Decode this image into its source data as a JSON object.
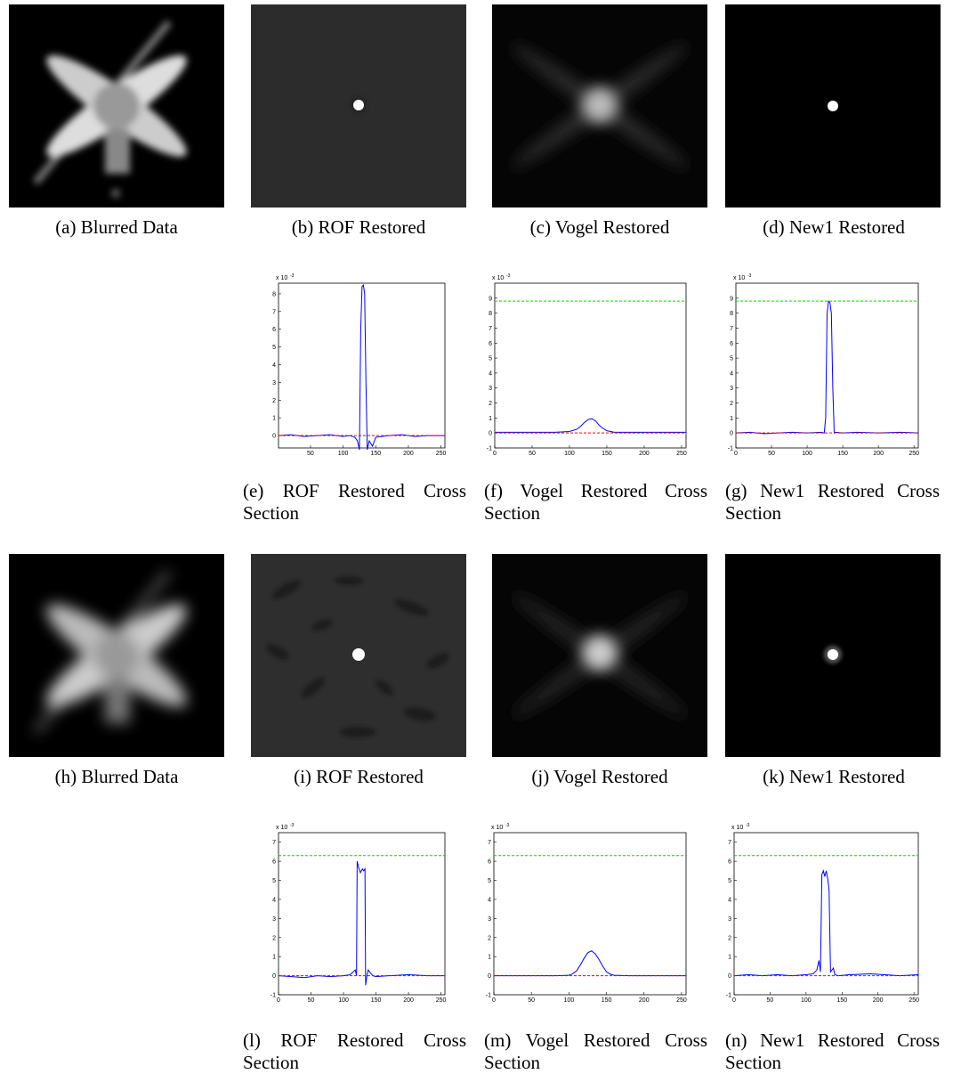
{
  "figure": {
    "captions": [
      "(a) Blurred Data",
      "(b) ROF Restored",
      "(c) Vogel Restored",
      "(d) New1 Restored",
      "(e) ROF Restored Cross Section",
      "(f) Vogel Restored Cross Section",
      "(g) New1 Restored Cross Section",
      "(h) Blurred Data",
      "(i) ROF Restored",
      "(j) Vogel Restored",
      "(k) New1 Restored",
      "(l) ROF Restored Cross Section",
      "(m) Vogel Restored Cross Section",
      "(n) New1 Restored Cross Section"
    ]
  },
  "chart_data": [
    {
      "type": "line",
      "multiplier": "x 10",
      "multiplier_exp": "-3",
      "xlim": [
        1,
        256
      ],
      "ylim": [
        -0.7,
        8.6
      ],
      "xticks": [
        50,
        100,
        150,
        200,
        250
      ],
      "yticks": [
        0,
        1,
        2,
        3,
        4,
        5,
        6,
        7,
        8
      ],
      "x": [
        1,
        20,
        40,
        60,
        80,
        100,
        110,
        118,
        122,
        125,
        127,
        129,
        131,
        133,
        135,
        137,
        140,
        145,
        150,
        170,
        190,
        210,
        230,
        256
      ],
      "series": [
        {
          "color": "#0000ff",
          "style": "solid",
          "values": [
            0,
            0.05,
            -0.05,
            0,
            0.05,
            -0.05,
            0,
            -0.1,
            -0.3,
            -0.8,
            6,
            8.4,
            8.5,
            8,
            3,
            -0.8,
            -0.3,
            -0.6,
            -0.1,
            0,
            0.05,
            -0.05,
            0,
            0
          ]
        },
        {
          "color": "#ff0000",
          "style": "dashed",
          "x": [
            1,
            256
          ],
          "values": [
            0,
            0
          ]
        }
      ]
    },
    {
      "type": "line",
      "multiplier": "x 10",
      "multiplier_exp": "-3",
      "xlim": [
        0,
        256
      ],
      "ylim": [
        -1,
        10
      ],
      "xticks": [
        0,
        50,
        100,
        150,
        200,
        250
      ],
      "yticks": [
        -1,
        0,
        1,
        2,
        3,
        4,
        5,
        6,
        7,
        8,
        9
      ],
      "x": [
        0,
        20,
        40,
        60,
        80,
        100,
        110,
        115,
        120,
        125,
        130,
        135,
        140,
        145,
        150,
        160,
        180,
        200,
        220,
        256
      ],
      "series": [
        {
          "color": "#0000ff",
          "style": "solid",
          "values": [
            0.05,
            0.05,
            0.05,
            0.05,
            0.05,
            0.1,
            0.25,
            0.45,
            0.7,
            0.9,
            0.95,
            0.8,
            0.5,
            0.3,
            0.15,
            0.05,
            0.05,
            0.05,
            0.05,
            0.05
          ]
        },
        {
          "color": "#ff0000",
          "style": "dashed",
          "x": [
            0,
            256
          ],
          "values": [
            0,
            0
          ]
        },
        {
          "color": "#00dd00",
          "style": "dashed",
          "x": [
            0,
            256
          ],
          "values": [
            8.8,
            8.8
          ]
        }
      ]
    },
    {
      "type": "line",
      "multiplier": "x 10",
      "multiplier_exp": "-3",
      "xlim": [
        0,
        256
      ],
      "ylim": [
        -1,
        10
      ],
      "xticks": [
        0,
        50,
        100,
        150,
        200,
        250
      ],
      "yticks": [
        -1,
        0,
        1,
        2,
        3,
        4,
        5,
        6,
        7,
        8,
        9
      ],
      "x": [
        0,
        20,
        40,
        60,
        80,
        100,
        120,
        124,
        126,
        128,
        130,
        132,
        134,
        136,
        138,
        140,
        150,
        170,
        200,
        230,
        256
      ],
      "series": [
        {
          "color": "#0000ff",
          "style": "solid",
          "values": [
            0,
            0.05,
            -0.05,
            0,
            0.05,
            0,
            0.05,
            0,
            1,
            8,
            8.8,
            8.7,
            8,
            3,
            0,
            0.05,
            0,
            0.05,
            0,
            0.05,
            0
          ]
        },
        {
          "color": "#ff0000",
          "style": "dashed",
          "x": [
            0,
            256
          ],
          "values": [
            0,
            0
          ]
        },
        {
          "color": "#00dd00",
          "style": "dashed",
          "x": [
            0,
            256
          ],
          "values": [
            8.8,
            8.8
          ]
        }
      ]
    },
    {
      "type": "line",
      "multiplier": "x 10",
      "multiplier_exp": "-3",
      "xlim": [
        0,
        256
      ],
      "ylim": [
        -1,
        7.5
      ],
      "xticks": [
        0,
        50,
        100,
        150,
        200,
        250
      ],
      "yticks": [
        -1,
        0,
        1,
        2,
        3,
        4,
        5,
        6,
        7
      ],
      "x": [
        0,
        20,
        40,
        60,
        80,
        100,
        110,
        115,
        118,
        120,
        121,
        123,
        126,
        129,
        131,
        133,
        134,
        136,
        138,
        140,
        145,
        150,
        170,
        200,
        230,
        256
      ],
      "series": [
        {
          "color": "#0000ff",
          "style": "solid",
          "values": [
            0,
            -0.05,
            -0.1,
            0,
            -0.05,
            0,
            0.05,
            0.2,
            0.3,
            0,
            6,
            5.7,
            5.4,
            5.6,
            5.5,
            5.6,
            -0.5,
            0,
            0.3,
            0.2,
            0,
            -0.05,
            0,
            0.05,
            0,
            0
          ]
        },
        {
          "color": "#ff0000",
          "style": "dashed",
          "x": [
            0,
            256
          ],
          "values": [
            0,
            0
          ]
        },
        {
          "color": "#00dd00",
          "style": "dashed",
          "x": [
            0,
            256
          ],
          "values": [
            6.3,
            6.3
          ]
        }
      ]
    },
    {
      "type": "line",
      "multiplier": "x 10",
      "multiplier_exp": "-3",
      "xlim": [
        0,
        256
      ],
      "ylim": [
        -1,
        7.5
      ],
      "xticks": [
        0,
        50,
        100,
        150,
        200,
        250
      ],
      "yticks": [
        -1,
        0,
        1,
        2,
        3,
        4,
        5,
        6,
        7
      ],
      "x": [
        0,
        20,
        40,
        60,
        80,
        100,
        105,
        110,
        115,
        120,
        125,
        130,
        135,
        140,
        145,
        150,
        155,
        160,
        180,
        200,
        230,
        256
      ],
      "series": [
        {
          "color": "#0000ff",
          "style": "solid",
          "values": [
            0,
            0,
            0,
            0,
            0,
            0.02,
            0.1,
            0.25,
            0.55,
            0.9,
            1.2,
            1.3,
            1.15,
            0.85,
            0.5,
            0.2,
            0.08,
            0.02,
            0,
            0,
            0,
            0
          ]
        },
        {
          "color": "#ff0000",
          "style": "dashed",
          "x": [
            0,
            256
          ],
          "values": [
            0,
            0
          ]
        },
        {
          "color": "#00dd00",
          "style": "dashed",
          "x": [
            0,
            256
          ],
          "values": [
            6.3,
            6.3
          ]
        }
      ]
    },
    {
      "type": "line",
      "multiplier": "x 10",
      "multiplier_exp": "-3",
      "xlim": [
        0,
        256
      ],
      "ylim": [
        -1,
        7.5
      ],
      "xticks": [
        0,
        50,
        100,
        150,
        200,
        250
      ],
      "yticks": [
        -1,
        0,
        1,
        2,
        3,
        4,
        5,
        6,
        7
      ],
      "x": [
        0,
        20,
        40,
        60,
        80,
        100,
        110,
        115,
        118,
        120,
        122,
        124,
        126,
        128,
        130,
        132,
        134,
        136,
        138,
        140,
        145,
        160,
        190,
        230,
        256
      ],
      "series": [
        {
          "color": "#0000ff",
          "style": "solid",
          "values": [
            0,
            0.05,
            0,
            0.05,
            0,
            0.05,
            0.1,
            0.3,
            0.8,
            0.2,
            5.3,
            5.5,
            5.2,
            5.5,
            5.1,
            4.5,
            0.2,
            0.3,
            0.4,
            0.05,
            0,
            0.05,
            0.1,
            0,
            0.05
          ]
        },
        {
          "color": "#ff0000",
          "style": "dashed",
          "x": [
            0,
            256
          ],
          "values": [
            0,
            0
          ]
        },
        {
          "color": "#00dd00",
          "style": "dashed",
          "x": [
            0,
            256
          ],
          "values": [
            6.3,
            6.3
          ]
        }
      ]
    }
  ]
}
